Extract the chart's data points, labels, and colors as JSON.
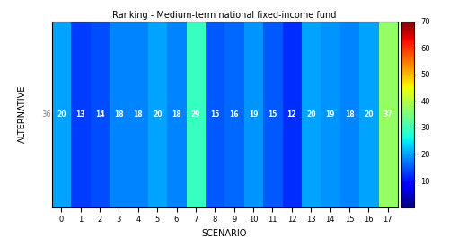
{
  "title": "Ranking - Medium-term national fixed-income fund",
  "xlabel": "SCENARIO",
  "ylabel": "ALTERNATIVE",
  "alt_label": "36",
  "scenarios": [
    0,
    1,
    2,
    3,
    4,
    5,
    6,
    7,
    8,
    9,
    10,
    11,
    12,
    13,
    14,
    15,
    16,
    17
  ],
  "values": [
    20,
    13,
    14,
    18,
    18,
    20,
    18,
    29,
    15,
    16,
    19,
    15,
    12,
    20,
    19,
    18,
    20,
    37
  ],
  "colorbar_min": 0,
  "colorbar_max": 70,
  "colorbar_ticks": [
    10,
    20,
    30,
    40,
    50,
    60,
    70
  ],
  "text_color": "white",
  "text_fontsize": 5.5
}
